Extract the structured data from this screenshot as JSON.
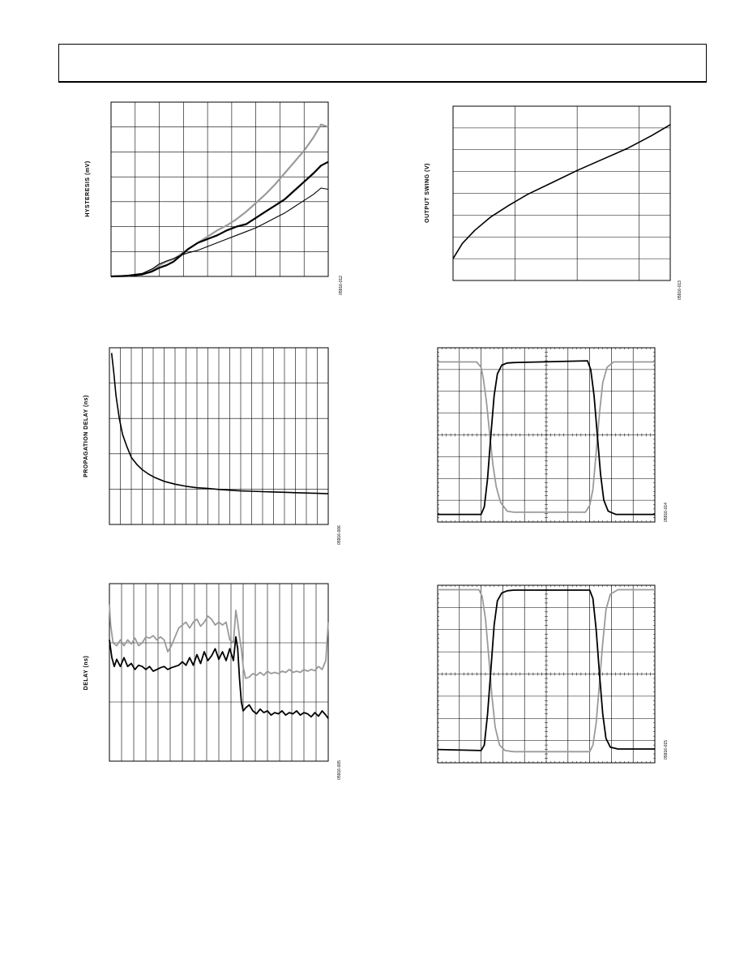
{
  "header": {
    "title": ""
  },
  "chart_data": [
    {
      "id": "hysteresis",
      "type": "line",
      "title": "",
      "xlabel": "",
      "ylabel": "HYSTERESIS (mV)",
      "fig_id": "05916-012",
      "grid": true,
      "xlim": [
        0,
        9
      ],
      "ylim": [
        0,
        7
      ],
      "x_divisions": 9,
      "y_divisions": 7,
      "series": [
        {
          "color": "#9a9a9a",
          "width": 2.2,
          "x": [
            0,
            0.7,
            1.3,
            1.7,
            2.0,
            2.3,
            2.6,
            2.9,
            3.2,
            3.6,
            4.0,
            4.4,
            4.8,
            5.2,
            5.6,
            6.0,
            6.4,
            6.8,
            7.2,
            7.6,
            8.0,
            8.4,
            8.7,
            9.0
          ],
          "y": [
            0,
            0.02,
            0.1,
            0.25,
            0.45,
            0.6,
            0.7,
            0.9,
            1.1,
            1.35,
            1.6,
            1.85,
            2.05,
            2.3,
            2.6,
            2.95,
            3.3,
            3.7,
            4.15,
            4.6,
            5.05,
            5.6,
            6.1,
            6.0
          ]
        },
        {
          "color": "#000000",
          "width": 2.2,
          "x": [
            0,
            0.7,
            1.3,
            1.7,
            2.0,
            2.3,
            2.6,
            2.9,
            3.2,
            3.6,
            4.0,
            4.4,
            4.8,
            5.2,
            5.6,
            6.0,
            6.4,
            6.8,
            7.2,
            7.6,
            8.0,
            8.4,
            8.7,
            9.0
          ],
          "y": [
            0,
            0.02,
            0.08,
            0.2,
            0.35,
            0.45,
            0.6,
            0.85,
            1.1,
            1.35,
            1.5,
            1.65,
            1.85,
            2.0,
            2.1,
            2.35,
            2.6,
            2.85,
            3.1,
            3.45,
            3.8,
            4.15,
            4.45,
            4.6
          ]
        },
        {
          "color": "#000000",
          "width": 1.1,
          "x": [
            0,
            0.7,
            1.3,
            1.7,
            2.0,
            2.3,
            2.6,
            2.9,
            3.2,
            3.6,
            4.0,
            4.4,
            4.8,
            5.2,
            5.6,
            6.0,
            6.4,
            6.8,
            7.2,
            7.6,
            8.0,
            8.4,
            8.7,
            9.0
          ],
          "y": [
            0,
            0.05,
            0.12,
            0.3,
            0.5,
            0.62,
            0.72,
            0.85,
            0.95,
            1.05,
            1.2,
            1.35,
            1.5,
            1.65,
            1.8,
            1.95,
            2.15,
            2.35,
            2.55,
            2.8,
            3.05,
            3.3,
            3.55,
            3.5
          ]
        }
      ]
    },
    {
      "id": "output-swing",
      "type": "line",
      "title": "",
      "xlabel": "",
      "ylabel": "OUTPUT SWING (V)",
      "fig_id": "05916-013",
      "grid": true,
      "xlim": [
        0,
        3.5
      ],
      "ylim": [
        0,
        8
      ],
      "x_grid": [
        1,
        2,
        3
      ],
      "y_divisions": 8,
      "series": [
        {
          "color": "#000000",
          "width": 1.6,
          "x": [
            0,
            0.15,
            0.35,
            0.6,
            0.9,
            1.2,
            1.6,
            2.0,
            2.4,
            2.8,
            3.2,
            3.5
          ],
          "y": [
            1.0,
            1.7,
            2.3,
            2.9,
            3.45,
            3.95,
            4.5,
            5.05,
            5.55,
            6.05,
            6.65,
            7.15
          ]
        }
      ]
    },
    {
      "id": "propagation-delay",
      "type": "line",
      "title": "",
      "xlabel": "",
      "ylabel": "PROPAGATION DELAY (ns)",
      "fig_id": "05916-006",
      "grid": true,
      "xlim": [
        0,
        20
      ],
      "ylim": [
        0,
        5
      ],
      "x_divisions": 20,
      "y_divisions": 5,
      "series": [
        {
          "color": "#000000",
          "width": 1.6,
          "x": [
            0.2,
            0.4,
            0.6,
            0.9,
            1.2,
            1.6,
            2.0,
            2.5,
            3.0,
            3.6,
            4.2,
            5.0,
            6.0,
            7.0,
            8.0,
            9.0,
            10,
            11,
            12,
            13,
            14,
            15,
            16,
            17,
            18,
            19,
            20
          ],
          "y": [
            4.85,
            4.3,
            3.65,
            3.0,
            2.55,
            2.2,
            1.9,
            1.7,
            1.55,
            1.42,
            1.32,
            1.22,
            1.14,
            1.08,
            1.04,
            1.02,
            0.99,
            0.97,
            0.95,
            0.94,
            0.93,
            0.92,
            0.91,
            0.9,
            0.89,
            0.88,
            0.87
          ]
        }
      ]
    },
    {
      "id": "scope-1",
      "type": "line",
      "title": "",
      "xlabel": "",
      "ylabel": "",
      "fig_id": "05916-014",
      "grid": true,
      "xlim": [
        0,
        10
      ],
      "ylim": [
        0,
        8
      ],
      "x_divisions": 10,
      "y_divisions": 8,
      "series": [
        {
          "color": "#9a9a9a",
          "width": 1.8,
          "x": [
            0,
            1.8,
            2.0,
            2.1,
            2.25,
            2.4,
            2.55,
            2.7,
            2.9,
            3.2,
            3.5,
            6.8,
            7.0,
            7.15,
            7.3,
            7.45,
            7.6,
            7.8,
            8.1,
            10
          ],
          "y": [
            7.35,
            7.35,
            7.1,
            6.6,
            5.5,
            4.0,
            2.6,
            1.6,
            0.9,
            0.5,
            0.45,
            0.45,
            0.75,
            1.5,
            3.2,
            5.0,
            6.4,
            7.1,
            7.35,
            7.35
          ]
        },
        {
          "color": "#000000",
          "width": 1.8,
          "x": [
            0,
            2.0,
            2.15,
            2.3,
            2.45,
            2.6,
            2.75,
            2.95,
            3.2,
            3.5,
            6.9,
            7.05,
            7.2,
            7.35,
            7.5,
            7.65,
            7.85,
            8.2,
            10
          ],
          "y": [
            0.35,
            0.35,
            0.7,
            2.0,
            4.0,
            5.8,
            6.8,
            7.2,
            7.3,
            7.32,
            7.4,
            7.0,
            5.8,
            4.0,
            2.2,
            1.0,
            0.5,
            0.35,
            0.35
          ]
        }
      ]
    },
    {
      "id": "delay",
      "type": "line",
      "title": "",
      "xlabel": "",
      "ylabel": "DELAY (ns)",
      "fig_id": "05916-005",
      "grid": true,
      "xlim": [
        0,
        18
      ],
      "ylim": [
        0,
        3
      ],
      "x_divisions": 18,
      "y_divisions": 3,
      "series": [
        {
          "color": "#9a9a9a",
          "width": 1.8,
          "x": [
            0,
            0.1,
            0.3,
            0.6,
            0.9,
            1.2,
            1.5,
            1.8,
            2.1,
            2.4,
            2.7,
            3.0,
            3.3,
            3.6,
            3.9,
            4.2,
            4.5,
            4.8,
            5.1,
            5.4,
            5.7,
            6.0,
            6.3,
            6.6,
            6.9,
            7.2,
            7.5,
            7.8,
            8.1,
            8.4,
            8.7,
            9.0,
            9.3,
            9.6,
            9.9,
            10.2,
            10.4,
            10.55,
            10.7,
            10.85,
            11.0,
            11.2,
            11.5,
            11.8,
            12.1,
            12.4,
            12.7,
            13.0,
            13.3,
            13.6,
            13.9,
            14.2,
            14.5,
            14.8,
            15.1,
            15.4,
            15.7,
            16.0,
            16.3,
            16.6,
            16.9,
            17.2,
            17.5,
            17.8,
            18.0
          ],
          "y": [
            2.65,
            2.3,
            2.0,
            1.95,
            2.05,
            1.95,
            2.05,
            1.98,
            2.08,
            1.95,
            2.0,
            2.1,
            2.08,
            2.12,
            2.05,
            2.1,
            2.05,
            1.85,
            1.95,
            2.1,
            2.25,
            2.3,
            2.35,
            2.25,
            2.35,
            2.4,
            2.28,
            2.35,
            2.45,
            2.4,
            2.3,
            2.35,
            2.3,
            2.35,
            2.05,
            2.0,
            2.55,
            2.35,
            2.1,
            1.9,
            1.6,
            1.4,
            1.42,
            1.48,
            1.45,
            1.5,
            1.45,
            1.52,
            1.48,
            1.5,
            1.48,
            1.52,
            1.5,
            1.55,
            1.5,
            1.52,
            1.5,
            1.55,
            1.52,
            1.55,
            1.53,
            1.6,
            1.55,
            1.7,
            2.35
          ]
        },
        {
          "color": "#000000",
          "width": 1.8,
          "x": [
            0,
            0.2,
            0.4,
            0.6,
            0.9,
            1.2,
            1.5,
            1.8,
            2.1,
            2.4,
            2.7,
            3.0,
            3.3,
            3.6,
            3.9,
            4.2,
            4.5,
            4.8,
            5.1,
            5.4,
            5.7,
            6.0,
            6.3,
            6.6,
            6.9,
            7.2,
            7.5,
            7.8,
            8.1,
            8.4,
            8.7,
            9.0,
            9.3,
            9.6,
            9.9,
            10.2,
            10.4,
            10.55,
            10.7,
            10.85,
            11.0,
            11.2,
            11.5,
            11.8,
            12.1,
            12.4,
            12.7,
            13.0,
            13.3,
            13.6,
            13.9,
            14.2,
            14.5,
            14.8,
            15.1,
            15.4,
            15.7,
            16.0,
            16.3,
            16.6,
            16.9,
            17.2,
            17.5,
            17.8,
            18.0
          ],
          "y": [
            2.05,
            1.75,
            1.6,
            1.72,
            1.6,
            1.75,
            1.6,
            1.65,
            1.55,
            1.62,
            1.6,
            1.55,
            1.6,
            1.52,
            1.55,
            1.58,
            1.6,
            1.55,
            1.58,
            1.6,
            1.62,
            1.68,
            1.62,
            1.75,
            1.62,
            1.8,
            1.65,
            1.85,
            1.7,
            1.78,
            1.9,
            1.72,
            1.85,
            1.7,
            1.9,
            1.7,
            2.1,
            1.9,
            1.4,
            1.0,
            0.85,
            0.9,
            0.95,
            0.85,
            0.8,
            0.88,
            0.82,
            0.85,
            0.78,
            0.82,
            0.8,
            0.85,
            0.78,
            0.82,
            0.8,
            0.85,
            0.78,
            0.82,
            0.8,
            0.75,
            0.82,
            0.76,
            0.85,
            0.78,
            0.72
          ]
        }
      ]
    },
    {
      "id": "scope-2",
      "type": "line",
      "title": "",
      "xlabel": "",
      "ylabel": "",
      "fig_id": "05916-015",
      "grid": true,
      "xlim": [
        0,
        10
      ],
      "ylim": [
        0,
        8
      ],
      "x_divisions": 10,
      "y_divisions": 8,
      "series": [
        {
          "color": "#9a9a9a",
          "width": 1.8,
          "x": [
            0,
            1.9,
            2.05,
            2.2,
            2.35,
            2.5,
            2.65,
            2.85,
            3.1,
            3.5,
            7.0,
            7.15,
            7.3,
            7.45,
            7.6,
            7.75,
            7.95,
            8.3,
            10
          ],
          "y": [
            7.8,
            7.8,
            7.5,
            6.5,
            4.8,
            3.0,
            1.6,
            0.8,
            0.55,
            0.5,
            0.5,
            0.8,
            1.8,
            3.6,
            5.4,
            6.9,
            7.6,
            7.8,
            7.8
          ]
        },
        {
          "color": "#000000",
          "width": 1.8,
          "x": [
            0,
            2.0,
            2.15,
            2.3,
            2.45,
            2.6,
            2.75,
            2.95,
            3.2,
            3.5,
            7.0,
            7.15,
            7.3,
            7.45,
            7.6,
            7.75,
            7.95,
            8.3,
            10
          ],
          "y": [
            0.6,
            0.55,
            0.8,
            2.2,
            4.2,
            6.2,
            7.3,
            7.65,
            7.75,
            7.78,
            7.78,
            7.4,
            6.0,
            4.0,
            2.2,
            1.1,
            0.7,
            0.62,
            0.62
          ]
        }
      ]
    }
  ]
}
